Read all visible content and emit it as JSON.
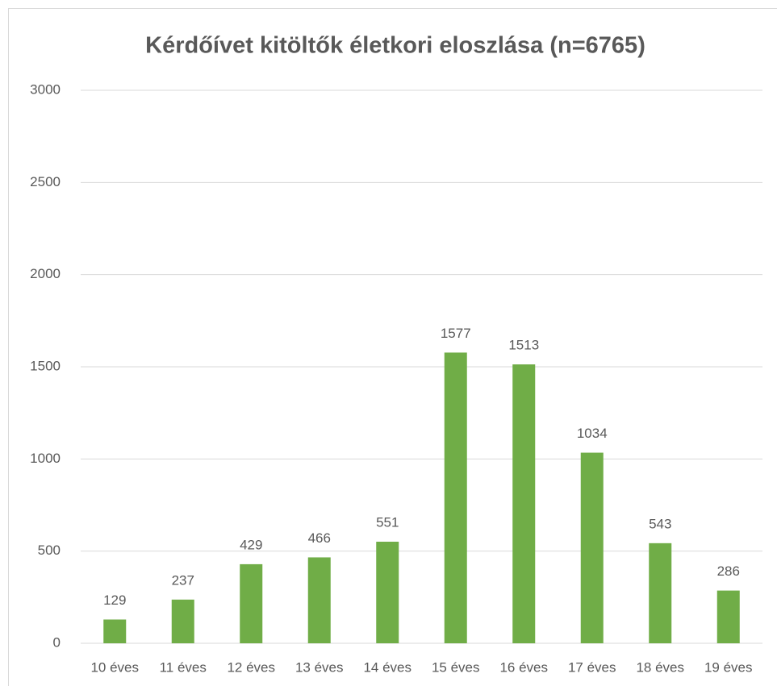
{
  "chart_data": {
    "type": "bar",
    "title": "Kérdőívet kitöltők életkori eloszlása (n=6765)",
    "categories": [
      "10 éves",
      "11 éves",
      "12 éves",
      "13 éves",
      "14 éves",
      "15 éves",
      "16 éves",
      "17 éves",
      "18 éves",
      "19 éves"
    ],
    "values": [
      129,
      237,
      429,
      466,
      551,
      1577,
      1513,
      1034,
      543,
      286
    ],
    "color": "#70ad47",
    "ylim": [
      0,
      3000
    ],
    "yticks": [
      0,
      500,
      1000,
      1500,
      2000,
      2500,
      3000
    ],
    "grid": true,
    "data_labels": true
  }
}
